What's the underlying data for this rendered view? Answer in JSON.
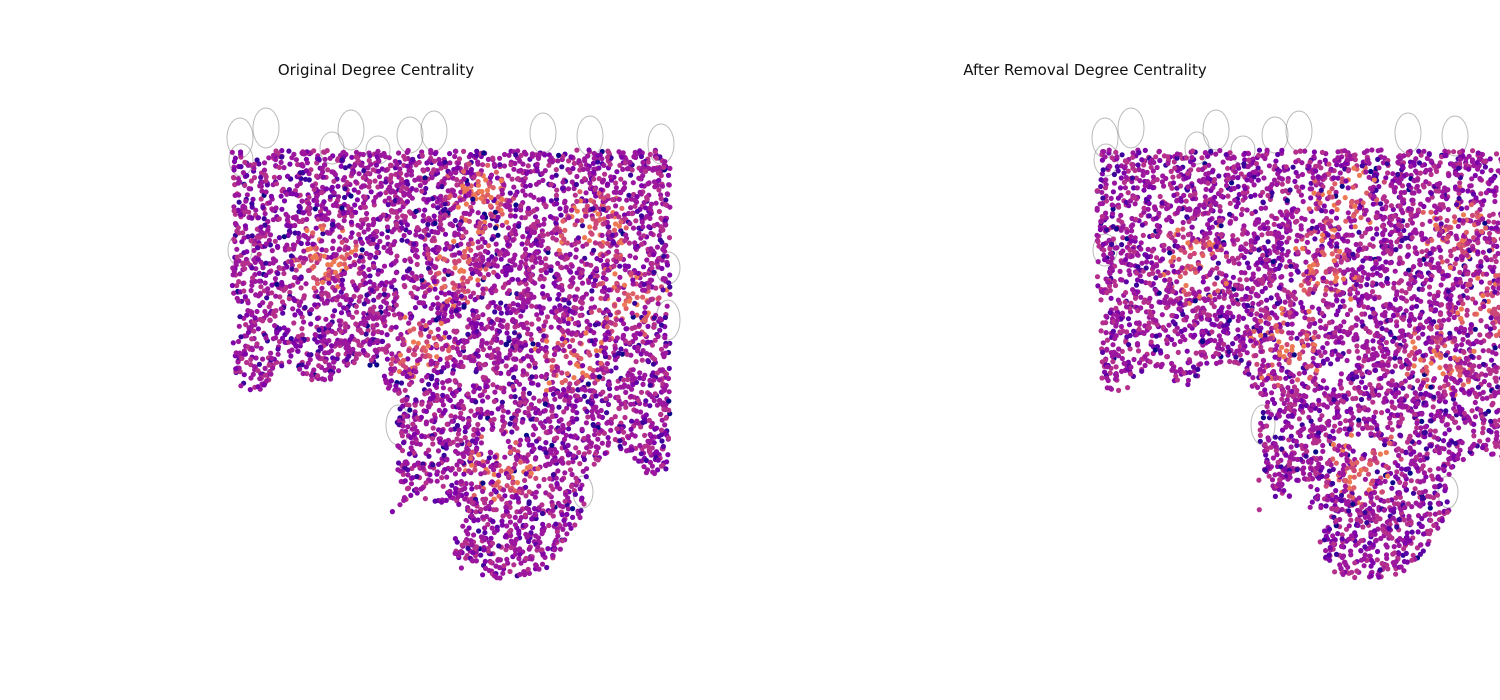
{
  "figure": {
    "colors": {
      "background": "#ffffff",
      "edge": "#8c8c8c",
      "node_palette": [
        "#0d0887",
        "#3a049a",
        "#5c01a6",
        "#7e03a8",
        "#9c179e",
        "#b52f8c",
        "#cc4778",
        "#de5f65",
        "#ed7953"
      ]
    },
    "colormap": "plasma",
    "node_count_estimate": "~10000 per panel",
    "axes_visible": false
  },
  "chart_data": [
    {
      "type": "scatter",
      "subtype": "network-graph",
      "title": "Original Degree Centrality",
      "xlabel": "",
      "ylabel": "",
      "grid": false,
      "color_encoding": "degree centrality (plasma colormap, dark purple = low, orange = high)"
    },
    {
      "type": "scatter",
      "subtype": "network-graph",
      "title": "After Removal Degree Centrality",
      "xlabel": "",
      "ylabel": "",
      "grid": false,
      "color_encoding": "degree centrality (plasma colormap, dark purple = low, orange = high)"
    }
  ]
}
